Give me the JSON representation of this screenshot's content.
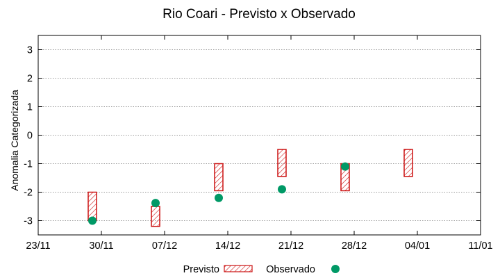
{
  "chart_data": {
    "type": "floating-bar-scatter",
    "title": "Rio Coari - Previsto x Observado",
    "ylabel": "Anomalia Categorizada",
    "xlabel": "",
    "ylim": [
      -3.5,
      3.5
    ],
    "xlim": [
      "23/11",
      "11/01"
    ],
    "x_ticks": [
      "23/11",
      "30/11",
      "07/12",
      "14/12",
      "21/12",
      "28/12",
      "04/01",
      "11/01"
    ],
    "y_ticks": [
      "3",
      "2",
      "1",
      "0",
      "-1",
      "-2",
      "-3"
    ],
    "grid": true,
    "legend_position": "bottom",
    "colors": {
      "previsto": "#cc1111",
      "observado": "#009966"
    },
    "series": [
      {
        "name": "Previsto",
        "kind": "range-bar",
        "points": [
          {
            "x": "29/11",
            "low": -3.0,
            "high": -2.0
          },
          {
            "x": "06/12",
            "low": -3.2,
            "high": -2.5
          },
          {
            "x": "13/12",
            "low": -1.95,
            "high": -1.0
          },
          {
            "x": "20/12",
            "low": -1.45,
            "high": -0.5
          },
          {
            "x": "27/12",
            "low": -1.95,
            "high": -1.0
          },
          {
            "x": "03/01",
            "low": -1.45,
            "high": -0.5
          }
        ]
      },
      {
        "name": "Observado",
        "kind": "scatter",
        "points": [
          {
            "x": "29/11",
            "y": -3.0
          },
          {
            "x": "06/12",
            "y": -2.38
          },
          {
            "x": "13/12",
            "y": -2.2
          },
          {
            "x": "20/12",
            "y": -1.9
          },
          {
            "x": "27/12",
            "y": -1.1
          }
        ]
      }
    ]
  }
}
